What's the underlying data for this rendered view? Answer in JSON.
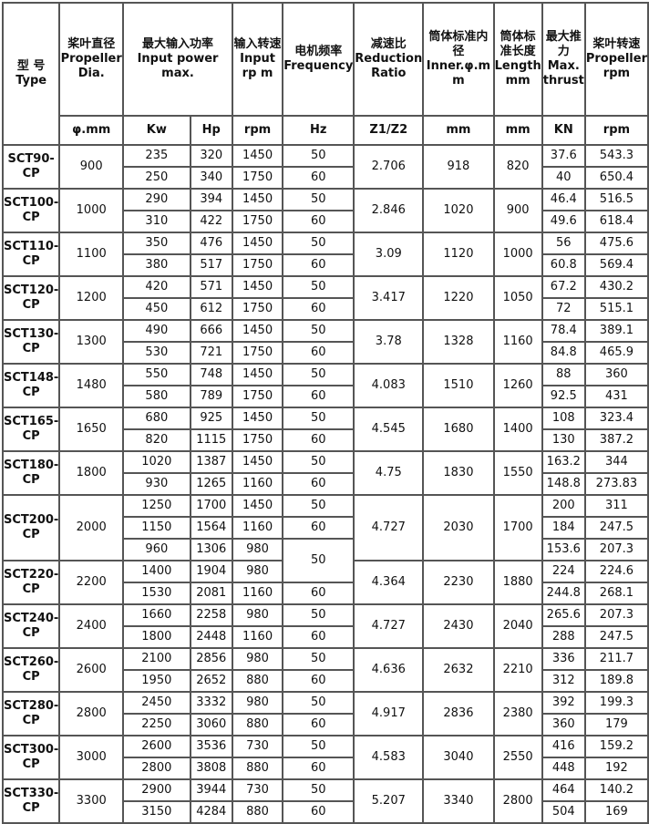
{
  "header": {
    "type": "型 号 Type",
    "dia": "桨叶直径 Propeller Dia.",
    "power": "最大输入功率 Input power max.",
    "input_rpm": "输入转速 Input rp m",
    "freq": "电机频率 Frequency",
    "ratio": "减速比 Reduction Ratio",
    "inner": "筒体标准内径 Inner.φ.m m",
    "length": "筒体标准长度 Length mm",
    "thrust": "最大推力 Max. thrust",
    "prop_rpm": "桨叶转速 Propeller rpm"
  },
  "units": [
    "φ.mm",
    "Kw",
    "Hp",
    "rpm",
    "Hz",
    "Z1/Z2",
    "mm",
    "mm",
    "KN",
    "rpm"
  ],
  "models": [
    {
      "type": "SCT90-CP",
      "dia": "900",
      "ratio": "2.706",
      "inner": "918",
      "length": "820",
      "rows": [
        [
          "235",
          "320",
          "1450",
          "50",
          "37.6",
          "543.3"
        ],
        [
          "250",
          "340",
          "1750",
          "60",
          "40",
          "650.4"
        ]
      ]
    },
    {
      "type": "SCT100-CP",
      "dia": "1000",
      "ratio": "2.846",
      "inner": "1020",
      "length": "900",
      "rows": [
        [
          "290",
          "394",
          "1450",
          "50",
          "46.4",
          "516.5"
        ],
        [
          "310",
          "422",
          "1750",
          "60",
          "49.6",
          "618.4"
        ]
      ]
    },
    {
      "type": "SCT110-CP",
      "dia": "1100",
      "ratio": "3.09",
      "inner": "1120",
      "length": "1000",
      "rows": [
        [
          "350",
          "476",
          "1450",
          "50",
          "56",
          "475.6"
        ],
        [
          "380",
          "517",
          "1750",
          "60",
          "60.8",
          "569.4"
        ]
      ]
    },
    {
      "type": "SCT120-CP",
      "dia": "1200",
      "ratio": "3.417",
      "inner": "1220",
      "length": "1050",
      "rows": [
        [
          "420",
          "571",
          "1450",
          "50",
          "67.2",
          "430.2"
        ],
        [
          "450",
          "612",
          "1750",
          "60",
          "72",
          "515.1"
        ]
      ]
    },
    {
      "type": "SCT130-CP",
      "dia": "1300",
      "ratio": "3.78",
      "inner": "1328",
      "length": "1160",
      "rows": [
        [
          "490",
          "666",
          "1450",
          "50",
          "78.4",
          "389.1"
        ],
        [
          "530",
          "721",
          "1750",
          "60",
          "84.8",
          "465.9"
        ]
      ]
    },
    {
      "type": "SCT148-CP",
      "dia": "1480",
      "ratio": "4.083",
      "inner": "1510",
      "length": "1260",
      "rows": [
        [
          "550",
          "748",
          "1450",
          "50",
          "88",
          "360"
        ],
        [
          "580",
          "789",
          "1750",
          "60",
          "92.5",
          "431"
        ]
      ]
    },
    {
      "type": "SCT165-CP",
      "dia": "1650",
      "ratio": "4.545",
      "inner": "1680",
      "length": "1400",
      "rows": [
        [
          "680",
          "925",
          "1450",
          "50",
          "108",
          "323.4"
        ],
        [
          "820",
          "1115",
          "1750",
          "60",
          "130",
          "387.2"
        ]
      ]
    },
    {
      "type": "SCT180-CP",
      "dia": "1800",
      "ratio": "4.75",
      "inner": "1830",
      "length": "1550",
      "rows": [
        [
          "1020",
          "1387",
          "1450",
          "50",
          "163.2",
          "344"
        ],
        [
          "930",
          "1265",
          "1160",
          "60",
          "148.8",
          "273.83"
        ]
      ]
    },
    {
      "type": "SCT200-CP",
      "dia": "2000",
      "ratio": "4.727",
      "inner": "2030",
      "length": "1700",
      "rows": [
        [
          "1250",
          "1700",
          "1450",
          "50",
          "200",
          "311"
        ],
        [
          "1150",
          "1564",
          "1160",
          "60",
          "184",
          "247.5"
        ],
        [
          "960",
          "1306",
          "980",
          "50",
          "153.6",
          "207.3"
        ]
      ]
    },
    {
      "type": "SCT220-CP",
      "dia": "2200",
      "ratio": "4.364",
      "inner": "2230",
      "length": "1880",
      "rows": [
        [
          "1400",
          "1904",
          "980",
          null,
          "224",
          "224.6"
        ],
        [
          "1530",
          "2081",
          "1160",
          "60",
          "244.8",
          "268.1"
        ]
      ]
    },
    {
      "type": "SCT240-CP",
      "dia": "2400",
      "ratio": "4.727",
      "inner": "2430",
      "length": "2040",
      "rows": [
        [
          "1660",
          "2258",
          "980",
          "50",
          "265.6",
          "207.3"
        ],
        [
          "1800",
          "2448",
          "1160",
          "60",
          "288",
          "247.5"
        ]
      ]
    },
    {
      "type": "SCT260-CP",
      "dia": "2600",
      "ratio": "4.636",
      "inner": "2632",
      "length": "2210",
      "rows": [
        [
          "2100",
          "2856",
          "980",
          "50",
          "336",
          "211.7"
        ],
        [
          "1950",
          "2652",
          "880",
          "60",
          "312",
          "189.8"
        ]
      ]
    },
    {
      "type": "SCT280-CP",
      "dia": "2800",
      "ratio": "4.917",
      "inner": "2836",
      "length": "2380",
      "rows": [
        [
          "2450",
          "3332",
          "980",
          "50",
          "392",
          "199.3"
        ],
        [
          "2250",
          "3060",
          "880",
          "60",
          "360",
          "179"
        ]
      ]
    },
    {
      "type": "SCT300-CP",
      "dia": "3000",
      "ratio": "4.583",
      "inner": "3040",
      "length": "2550",
      "rows": [
        [
          "2600",
          "3536",
          "730",
          "50",
          "416",
          "159.2"
        ],
        [
          "2800",
          "3808",
          "880",
          "60",
          "448",
          "192"
        ]
      ]
    },
    {
      "type": "SCT330-CP",
      "dia": "3300",
      "ratio": "5.207",
      "inner": "3340",
      "length": "2800",
      "rows": [
        [
          "2900",
          "3944",
          "730",
          "50",
          "464",
          "140.2"
        ],
        [
          "3150",
          "4284",
          "880",
          "60",
          "504",
          "169"
        ]
      ]
    }
  ]
}
